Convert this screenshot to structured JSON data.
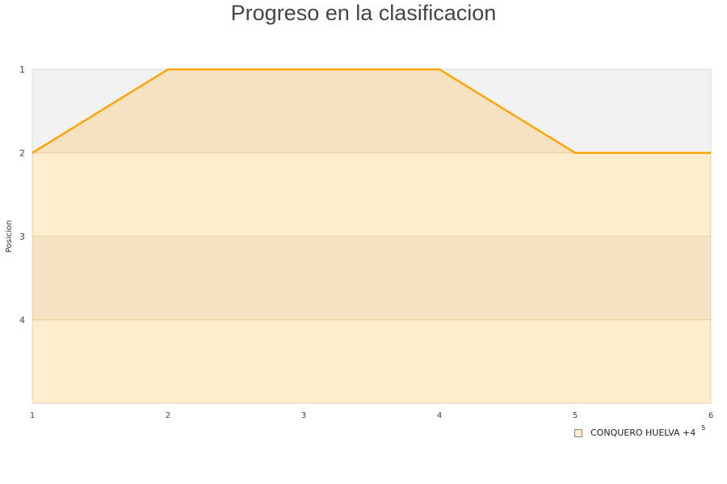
{
  "chart_data": {
    "type": "area",
    "title": "Progreso en la clasificacion",
    "ylabel": "Posicion",
    "xlabel": "",
    "x": [
      1,
      2,
      3,
      4,
      5,
      6
    ],
    "x_ticks": [
      "1",
      "2",
      "3",
      "4",
      "5",
      "6"
    ],
    "y_ticks": [
      "1",
      "2",
      "3",
      "4"
    ],
    "ylim": [
      1,
      5
    ],
    "y_inverted": true,
    "xlim": [
      1,
      6
    ],
    "grid": true,
    "legend_position": "bottom-right",
    "series": [
      {
        "name": "CONQUERO HUELVA +4",
        "values": [
          2,
          1,
          1,
          1,
          2,
          2
        ],
        "color": "#ffa500"
      }
    ],
    "legend_extra": "5"
  }
}
